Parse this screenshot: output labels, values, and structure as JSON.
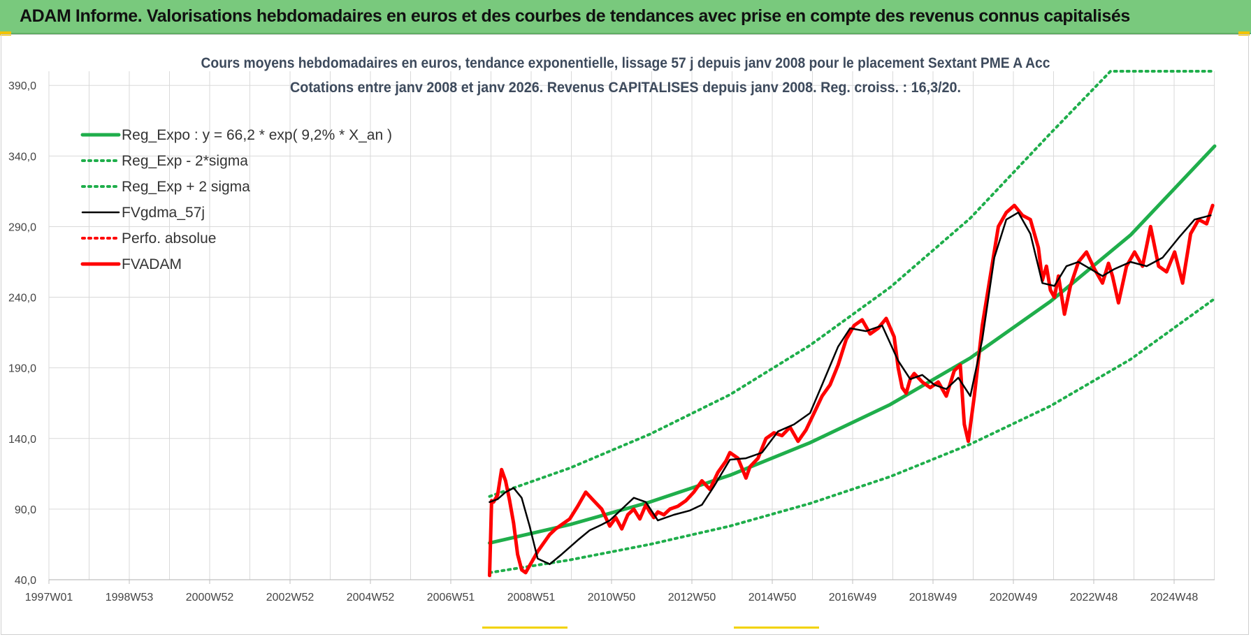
{
  "banner": {
    "title": "ADAM Informe. Valorisations hebdomadaires en euros et des courbes de tendances avec prise en compte des revenus connus capitalisés"
  },
  "colors": {
    "banner_bg": "#79c97d",
    "green": "#1fae4b",
    "red": "#ff0000",
    "black": "#000000",
    "grid": "#d9d9d9"
  },
  "chart_data": {
    "type": "line",
    "title_lines": [
      "Cours moyens hebdomadaires en euros, tendance exponentielle, lissage 57 j depuis janv 2008  pour le placement Sextant PME A Acc",
      "Cotations entre janv 2008 et janv 2026. Revenus CAPITALISES depuis janv 2008. Reg. croiss. : 16,3/20."
    ],
    "x_tick_labels": [
      "1997W01",
      "1998W53",
      "2000W52",
      "2002W52",
      "2004W52",
      "2006W51",
      "2008W51",
      "2010W50",
      "2012W50",
      "2014W50",
      "2016W49",
      "2018W49",
      "2020W49",
      "2022W48",
      "2024W48"
    ],
    "xlim": [
      1997.0,
      2026.1
    ],
    "y_tick_labels": [
      "40,0",
      "90,0",
      "140,0",
      "190,0",
      "240,0",
      "290,0",
      "340,0",
      "390,0"
    ],
    "y_ticks": [
      40,
      90,
      140,
      190,
      240,
      290,
      340,
      390
    ],
    "ylim": [
      40,
      400
    ],
    "grid": true,
    "legend_position": "top-left",
    "legend": [
      {
        "label": "Reg_Expo : y = 66,2 * exp( 9,2% *  X_an )",
        "color": "#1fae4b",
        "style": "solid-thick"
      },
      {
        "label": "Reg_Exp - 2*sigma",
        "color": "#1fae4b",
        "style": "dotted"
      },
      {
        "label": "Reg_Exp + 2 sigma",
        "color": "#1fae4b",
        "style": "dotted"
      },
      {
        "label": "FVgdma_57j",
        "color": "#000000",
        "style": "solid"
      },
      {
        "label": "Perfo. absolue",
        "color": "#ff0000",
        "style": "dotted"
      },
      {
        "label": "FVADAM",
        "color": "#ff0000",
        "style": "solid-thick"
      }
    ],
    "series": [
      {
        "name": "Reg_Expo : y = 66,2 * exp( 9,2% *  X_an )",
        "x": [
          2008.0,
          2010.0,
          2012.0,
          2014.0,
          2016.0,
          2018.0,
          2020.0,
          2022.0,
          2024.0,
          2026.1
        ],
        "values": [
          66,
          79,
          95,
          114,
          137,
          164,
          197,
          237,
          284,
          347
        ]
      },
      {
        "name": "Reg_Exp - 2*sigma",
        "x": [
          2008.0,
          2010.0,
          2012.0,
          2014.0,
          2016.0,
          2018.0,
          2020.0,
          2022.0,
          2024.0,
          2026.1
        ],
        "values": [
          45,
          54,
          65,
          78,
          94,
          113,
          136,
          163,
          196,
          239
        ]
      },
      {
        "name": "Reg_Exp + 2 sigma",
        "x": [
          2008.0,
          2010.0,
          2012.0,
          2014.0,
          2016.0,
          2018.0,
          2020.0,
          2022.0,
          2023.5,
          2026.1
        ],
        "values": [
          99,
          119,
          143,
          171,
          206,
          247,
          296,
          356,
          400,
          400
        ]
      },
      {
        "name": "FVgdma_57j",
        "x": [
          2008.0,
          2008.2,
          2008.4,
          2008.6,
          2008.8,
          2009.0,
          2009.2,
          2009.5,
          2009.8,
          2010.2,
          2010.5,
          2010.8,
          2011.0,
          2011.3,
          2011.6,
          2011.9,
          2012.2,
          2012.6,
          2013.0,
          2013.3,
          2013.6,
          2014.0,
          2014.4,
          2014.8,
          2015.2,
          2015.6,
          2016.0,
          2016.3,
          2016.7,
          2017.0,
          2017.4,
          2017.8,
          2018.2,
          2018.5,
          2018.8,
          2019.1,
          2019.4,
          2019.7,
          2020.0,
          2020.3,
          2020.6,
          2020.9,
          2021.2,
          2021.5,
          2021.8,
          2022.1,
          2022.4,
          2022.7,
          2023.0,
          2023.3,
          2023.6,
          2024.0,
          2024.4,
          2024.8,
          2025.2,
          2025.6,
          2026.0
        ],
        "values": [
          95,
          97,
          102,
          105,
          98,
          78,
          55,
          51,
          58,
          68,
          75,
          79,
          82,
          90,
          98,
          95,
          82,
          86,
          89,
          93,
          106,
          125,
          126,
          130,
          145,
          150,
          158,
          178,
          205,
          218,
          216,
          220,
          195,
          182,
          185,
          178,
          175,
          183,
          170,
          210,
          268,
          295,
          300,
          285,
          250,
          248,
          262,
          265,
          260,
          255,
          260,
          265,
          262,
          268,
          282,
          295,
          298
        ]
      },
      {
        "name": "FVADAM",
        "x": [
          2008.0,
          2008.05,
          2008.1,
          2008.2,
          2008.3,
          2008.4,
          2008.5,
          2008.6,
          2008.7,
          2008.8,
          2008.9,
          2009.0,
          2009.1,
          2009.2,
          2009.35,
          2009.5,
          2009.65,
          2009.8,
          2010.0,
          2010.2,
          2010.4,
          2010.6,
          2010.8,
          2011.0,
          2011.15,
          2011.3,
          2011.45,
          2011.6,
          2011.75,
          2011.9,
          2012.0,
          2012.1,
          2012.2,
          2012.35,
          2012.5,
          2012.7,
          2012.9,
          2013.1,
          2013.3,
          2013.5,
          2013.7,
          2013.9,
          2014.0,
          2014.2,
          2014.4,
          2014.5,
          2014.7,
          2014.9,
          2015.1,
          2015.3,
          2015.5,
          2015.7,
          2015.9,
          2016.1,
          2016.3,
          2016.5,
          2016.7,
          2016.9,
          2017.1,
          2017.3,
          2017.5,
          2017.7,
          2017.9,
          2018.1,
          2018.2,
          2018.3,
          2018.4,
          2018.5,
          2018.6,
          2018.8,
          2019.0,
          2019.2,
          2019.4,
          2019.6,
          2019.75,
          2019.85,
          2019.95,
          2020.1,
          2020.3,
          2020.5,
          2020.7,
          2020.9,
          2021.1,
          2021.3,
          2021.5,
          2021.7,
          2021.8,
          2021.9,
          2022.0,
          2022.1,
          2022.2,
          2022.35,
          2022.5,
          2022.7,
          2022.9,
          2023.1,
          2023.3,
          2023.45,
          2023.55,
          2023.7,
          2023.9,
          2024.1,
          2024.3,
          2024.5,
          2024.7,
          2024.9,
          2025.1,
          2025.3,
          2025.5,
          2025.7,
          2025.9,
          2026.05
        ],
        "values": [
          43,
          96,
          95,
          100,
          118,
          110,
          96,
          80,
          58,
          47,
          45,
          50,
          55,
          60,
          66,
          72,
          76,
          79,
          83,
          92,
          102,
          96,
          90,
          78,
          84,
          76,
          86,
          90,
          83,
          93,
          88,
          84,
          88,
          86,
          90,
          92,
          96,
          102,
          110,
          104,
          116,
          124,
          130,
          126,
          112,
          120,
          126,
          140,
          144,
          142,
          148,
          138,
          146,
          158,
          170,
          178,
          192,
          210,
          220,
          224,
          214,
          218,
          225,
          212,
          190,
          176,
          172,
          182,
          186,
          180,
          176,
          180,
          170,
          188,
          192,
          150,
          138,
          170,
          220,
          255,
          290,
          300,
          305,
          298,
          295,
          275,
          252,
          262,
          245,
          240,
          255,
          228,
          248,
          265,
          272,
          260,
          250,
          264,
          255,
          236,
          262,
          272,
          262,
          290,
          262,
          258,
          272,
          250,
          285,
          295,
          292,
          305
        ]
      }
    ]
  }
}
